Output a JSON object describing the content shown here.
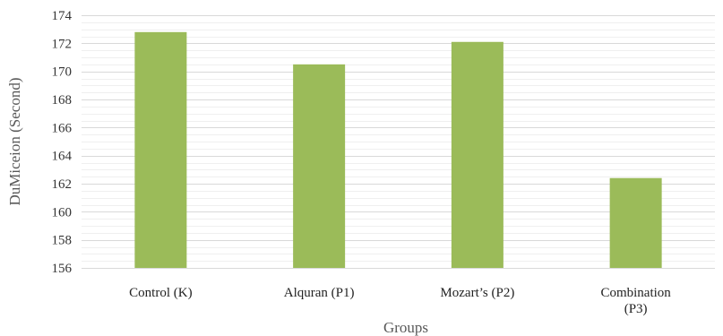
{
  "chart_data": {
    "type": "bar",
    "categories": [
      "Control (K)",
      "Alquran (P1)",
      "Mozart's (P2)",
      "Combination (P3)"
    ],
    "category_lines": [
      [
        "Control (K)"
      ],
      [
        "Alquran (P1)"
      ],
      [
        "Mozart’s (P2)"
      ],
      [
        "Combination",
        "(P3)"
      ]
    ],
    "values": [
      172.8,
      170.5,
      172.1,
      162.4
    ],
    "xlabel": "Groups",
    "ylabel": "DuMiceion (Second)",
    "ylim": [
      156,
      174
    ],
    "yticks": [
      156,
      158,
      160,
      162,
      164,
      166,
      168,
      170,
      172,
      174
    ],
    "grid": true,
    "bar_color": "#9bbb59"
  }
}
